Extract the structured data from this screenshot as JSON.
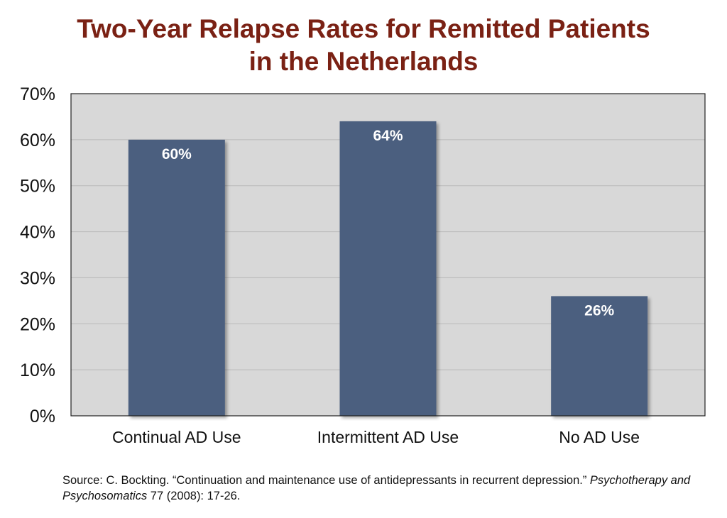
{
  "chart_data": {
    "type": "bar",
    "title_lines": [
      "Two-Year Relapse Rates for Remitted Patients",
      "in the Netherlands"
    ],
    "categories": [
      "Continual AD Use",
      "Intermittent AD Use",
      "No AD Use"
    ],
    "values": [
      60,
      64,
      26
    ],
    "data_labels": [
      "60%",
      "64%",
      "26%"
    ],
    "y_ticks": [
      "0%",
      "10%",
      "20%",
      "30%",
      "40%",
      "50%",
      "60%",
      "70%"
    ],
    "ylim": [
      0,
      70
    ],
    "grid": true,
    "colors": {
      "bar": "#4c5f7f",
      "plot_bg": "#d8d8d8",
      "gridline": "#b9b9b9",
      "title": "#7a2114",
      "data_label": "#ffffff"
    }
  },
  "source": {
    "prefix": "Source: C. Bockting. “Continuation and maintenance use of antidepressants in recurrent depression.” ",
    "journal": "Psychotherapy and Psychosomatics",
    "suffix": " 77 (2008): 17-26."
  }
}
